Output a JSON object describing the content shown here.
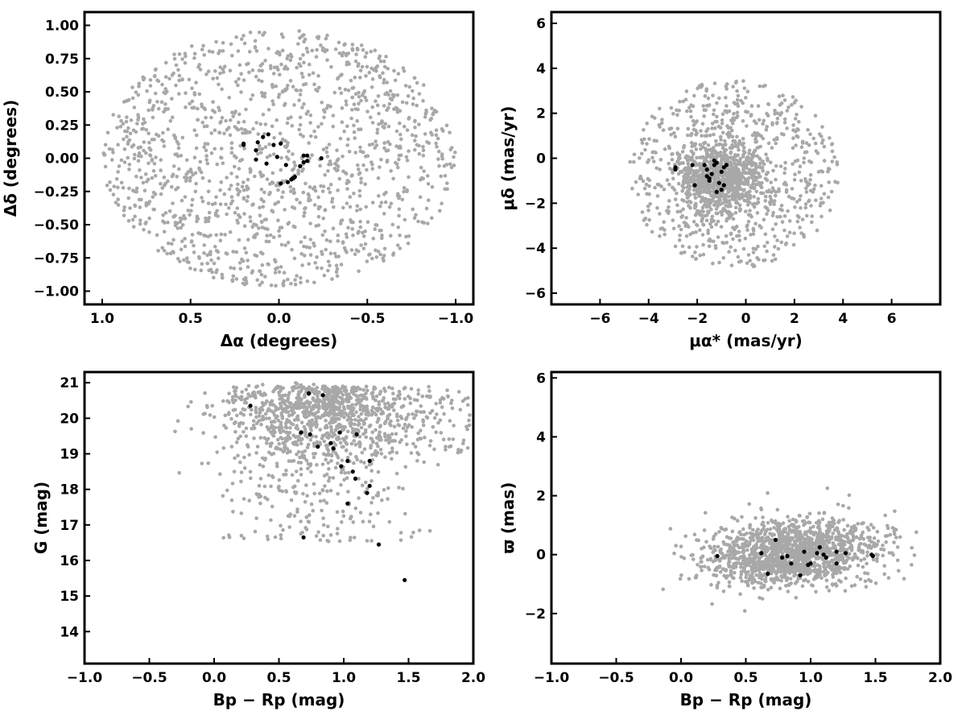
{
  "colors": {
    "field": "#a8a8a8",
    "members": "#000000",
    "axes": "#000000"
  },
  "chart_data": [
    {
      "id": "sky",
      "type": "scatter",
      "xlabel": "Δα (degrees)",
      "ylabel": "Δδ (degrees)",
      "xlim": [
        1.1,
        -1.1
      ],
      "ylim": [
        -1.1,
        1.1
      ],
      "x_inverted": true,
      "xticks": [
        1.0,
        0.5,
        0.0,
        -0.5,
        -1.0
      ],
      "xtick_labels": [
        "1.0",
        "0.5",
        "0.0",
        "−0.5",
        "−1.0"
      ],
      "yticks": [
        1.0,
        0.75,
        0.5,
        0.25,
        0.0,
        -0.25,
        -0.5,
        -0.75,
        -1.0
      ],
      "ytick_labels": [
        "1.00",
        "0.75",
        "0.50",
        "0.25",
        "0.00",
        "−0.25",
        "−0.50",
        "−0.75",
        "−1.00"
      ],
      "grid": false,
      "members": [
        [
          -0.24,
          0.0
        ],
        [
          -0.16,
          0.02
        ],
        [
          -0.14,
          0.02
        ],
        [
          -0.16,
          -0.02
        ],
        [
          -0.14,
          -0.03
        ],
        [
          -0.12,
          -0.06
        ],
        [
          -0.09,
          -0.14
        ],
        [
          -0.08,
          -0.15
        ],
        [
          -0.07,
          -0.16
        ],
        [
          -0.05,
          -0.18
        ],
        [
          -0.04,
          -0.05
        ],
        [
          -0.01,
          0.11
        ],
        [
          0.03,
          0.1
        ],
        [
          0.01,
          0.01
        ],
        [
          0.06,
          0.18
        ],
        [
          0.09,
          0.16
        ],
        [
          0.07,
          -0.04
        ],
        [
          0.12,
          0.12
        ],
        [
          0.13,
          0.06
        ],
        [
          0.2,
          0.11
        ],
        [
          0.2,
          0.1
        ],
        [
          0.13,
          -0.01
        ],
        [
          -0.01,
          -0.19
        ]
      ]
    },
    {
      "id": "proper-motion",
      "type": "scatter",
      "xlabel": "μα* (mas/yr)",
      "ylabel": "μδ (mas/yr)",
      "xlim": [
        -8,
        8
      ],
      "ylim": [
        -6.5,
        6.5
      ],
      "xticks": [
        -6,
        -4,
        -2,
        0,
        2,
        4,
        6
      ],
      "xtick_labels": [
        "−6",
        "−4",
        "−2",
        "0",
        "2",
        "4",
        "6"
      ],
      "yticks": [
        6,
        4,
        2,
        0,
        -2,
        -4,
        -6
      ],
      "ytick_labels": [
        "6",
        "4",
        "2",
        "0",
        "−2",
        "−4",
        "−6"
      ],
      "grid": false,
      "members": [
        [
          -2.9,
          -0.5
        ],
        [
          -2.9,
          -0.4
        ],
        [
          -2.2,
          -0.3
        ],
        [
          -2.1,
          -1.2
        ],
        [
          -1.7,
          -0.3
        ],
        [
          -1.6,
          -0.5
        ],
        [
          -1.6,
          -0.8
        ],
        [
          -1.5,
          -0.9
        ],
        [
          -1.4,
          -0.7
        ],
        [
          -1.3,
          -0.1
        ],
        [
          -1.3,
          -0.3
        ],
        [
          -1.2,
          -1.5
        ],
        [
          -1.1,
          -1.1
        ],
        [
          -1.0,
          -0.6
        ],
        [
          -1.0,
          -1.4
        ],
        [
          -0.9,
          -1.2
        ],
        [
          -0.9,
          -0.4
        ],
        [
          -0.8,
          -0.3
        ],
        [
          -1.2,
          -0.2
        ],
        [
          -1.5,
          -1.0
        ]
      ]
    },
    {
      "id": "cmd-g",
      "type": "scatter",
      "xlabel": "Bp − Rp (mag)",
      "ylabel": "G (mag)",
      "xlim": [
        -1.0,
        2.0
      ],
      "ylim": [
        13.1,
        21.3
      ],
      "y_inverted": true,
      "xticks": [
        -1.0,
        -0.5,
        0.0,
        0.5,
        1.0,
        1.5,
        2.0
      ],
      "xtick_labels": [
        "−1.0",
        "−0.5",
        "0.0",
        "0.5",
        "1.0",
        "1.5",
        "2.0"
      ],
      "yticks": [
        21,
        20,
        19,
        18,
        17,
        16,
        15,
        14
      ],
      "ytick_labels": [
        "21",
        "20",
        "19",
        "18",
        "17",
        "16",
        "15",
        "14"
      ],
      "grid": false,
      "members": [
        [
          0.28,
          20.35
        ],
        [
          0.73,
          20.7
        ],
        [
          0.84,
          20.65
        ],
        [
          0.67,
          19.6
        ],
        [
          0.74,
          19.55
        ],
        [
          0.8,
          19.2
        ],
        [
          0.9,
          19.3
        ],
        [
          0.92,
          19.15
        ],
        [
          0.97,
          19.6
        ],
        [
          0.98,
          18.65
        ],
        [
          1.03,
          18.8
        ],
        [
          1.07,
          18.5
        ],
        [
          1.1,
          19.55
        ],
        [
          1.09,
          18.3
        ],
        [
          1.2,
          18.8
        ],
        [
          1.18,
          17.9
        ],
        [
          1.2,
          18.1
        ],
        [
          1.03,
          17.6
        ],
        [
          0.69,
          16.65
        ],
        [
          1.27,
          16.45
        ],
        [
          1.47,
          15.45
        ]
      ]
    },
    {
      "id": "cmd-parallax",
      "type": "scatter",
      "xlabel": "Bp − Rp (mag)",
      "ylabel": "ϖ (mas)",
      "xlim": [
        -1.0,
        2.0
      ],
      "ylim": [
        -3.7,
        6.2
      ],
      "xticks": [
        -1.0,
        -0.5,
        0.0,
        0.5,
        1.0,
        1.5,
        2.0
      ],
      "xtick_labels": [
        "−1.0",
        "−0.5",
        "0.0",
        "0.5",
        "1.0",
        "1.5",
        "2.0"
      ],
      "yticks": [
        6,
        4,
        2,
        0,
        -2
      ],
      "ytick_labels": [
        "6",
        "4",
        "2",
        "0",
        "−2"
      ],
      "grid": false,
      "members": [
        [
          0.28,
          -0.05
        ],
        [
          0.62,
          0.05
        ],
        [
          0.67,
          -0.65
        ],
        [
          0.73,
          0.5
        ],
        [
          0.78,
          -0.1
        ],
        [
          0.82,
          -0.05
        ],
        [
          0.85,
          -0.3
        ],
        [
          0.92,
          -0.7
        ],
        [
          0.95,
          0.1
        ],
        [
          0.98,
          -0.35
        ],
        [
          1.0,
          -0.3
        ],
        [
          1.05,
          0.05
        ],
        [
          1.07,
          0.25
        ],
        [
          1.1,
          0.0
        ],
        [
          1.12,
          -0.1
        ],
        [
          1.2,
          0.1
        ],
        [
          1.2,
          -0.3
        ],
        [
          1.27,
          0.05
        ],
        [
          1.47,
          0.0
        ],
        [
          1.48,
          -0.05
        ]
      ]
    }
  ]
}
